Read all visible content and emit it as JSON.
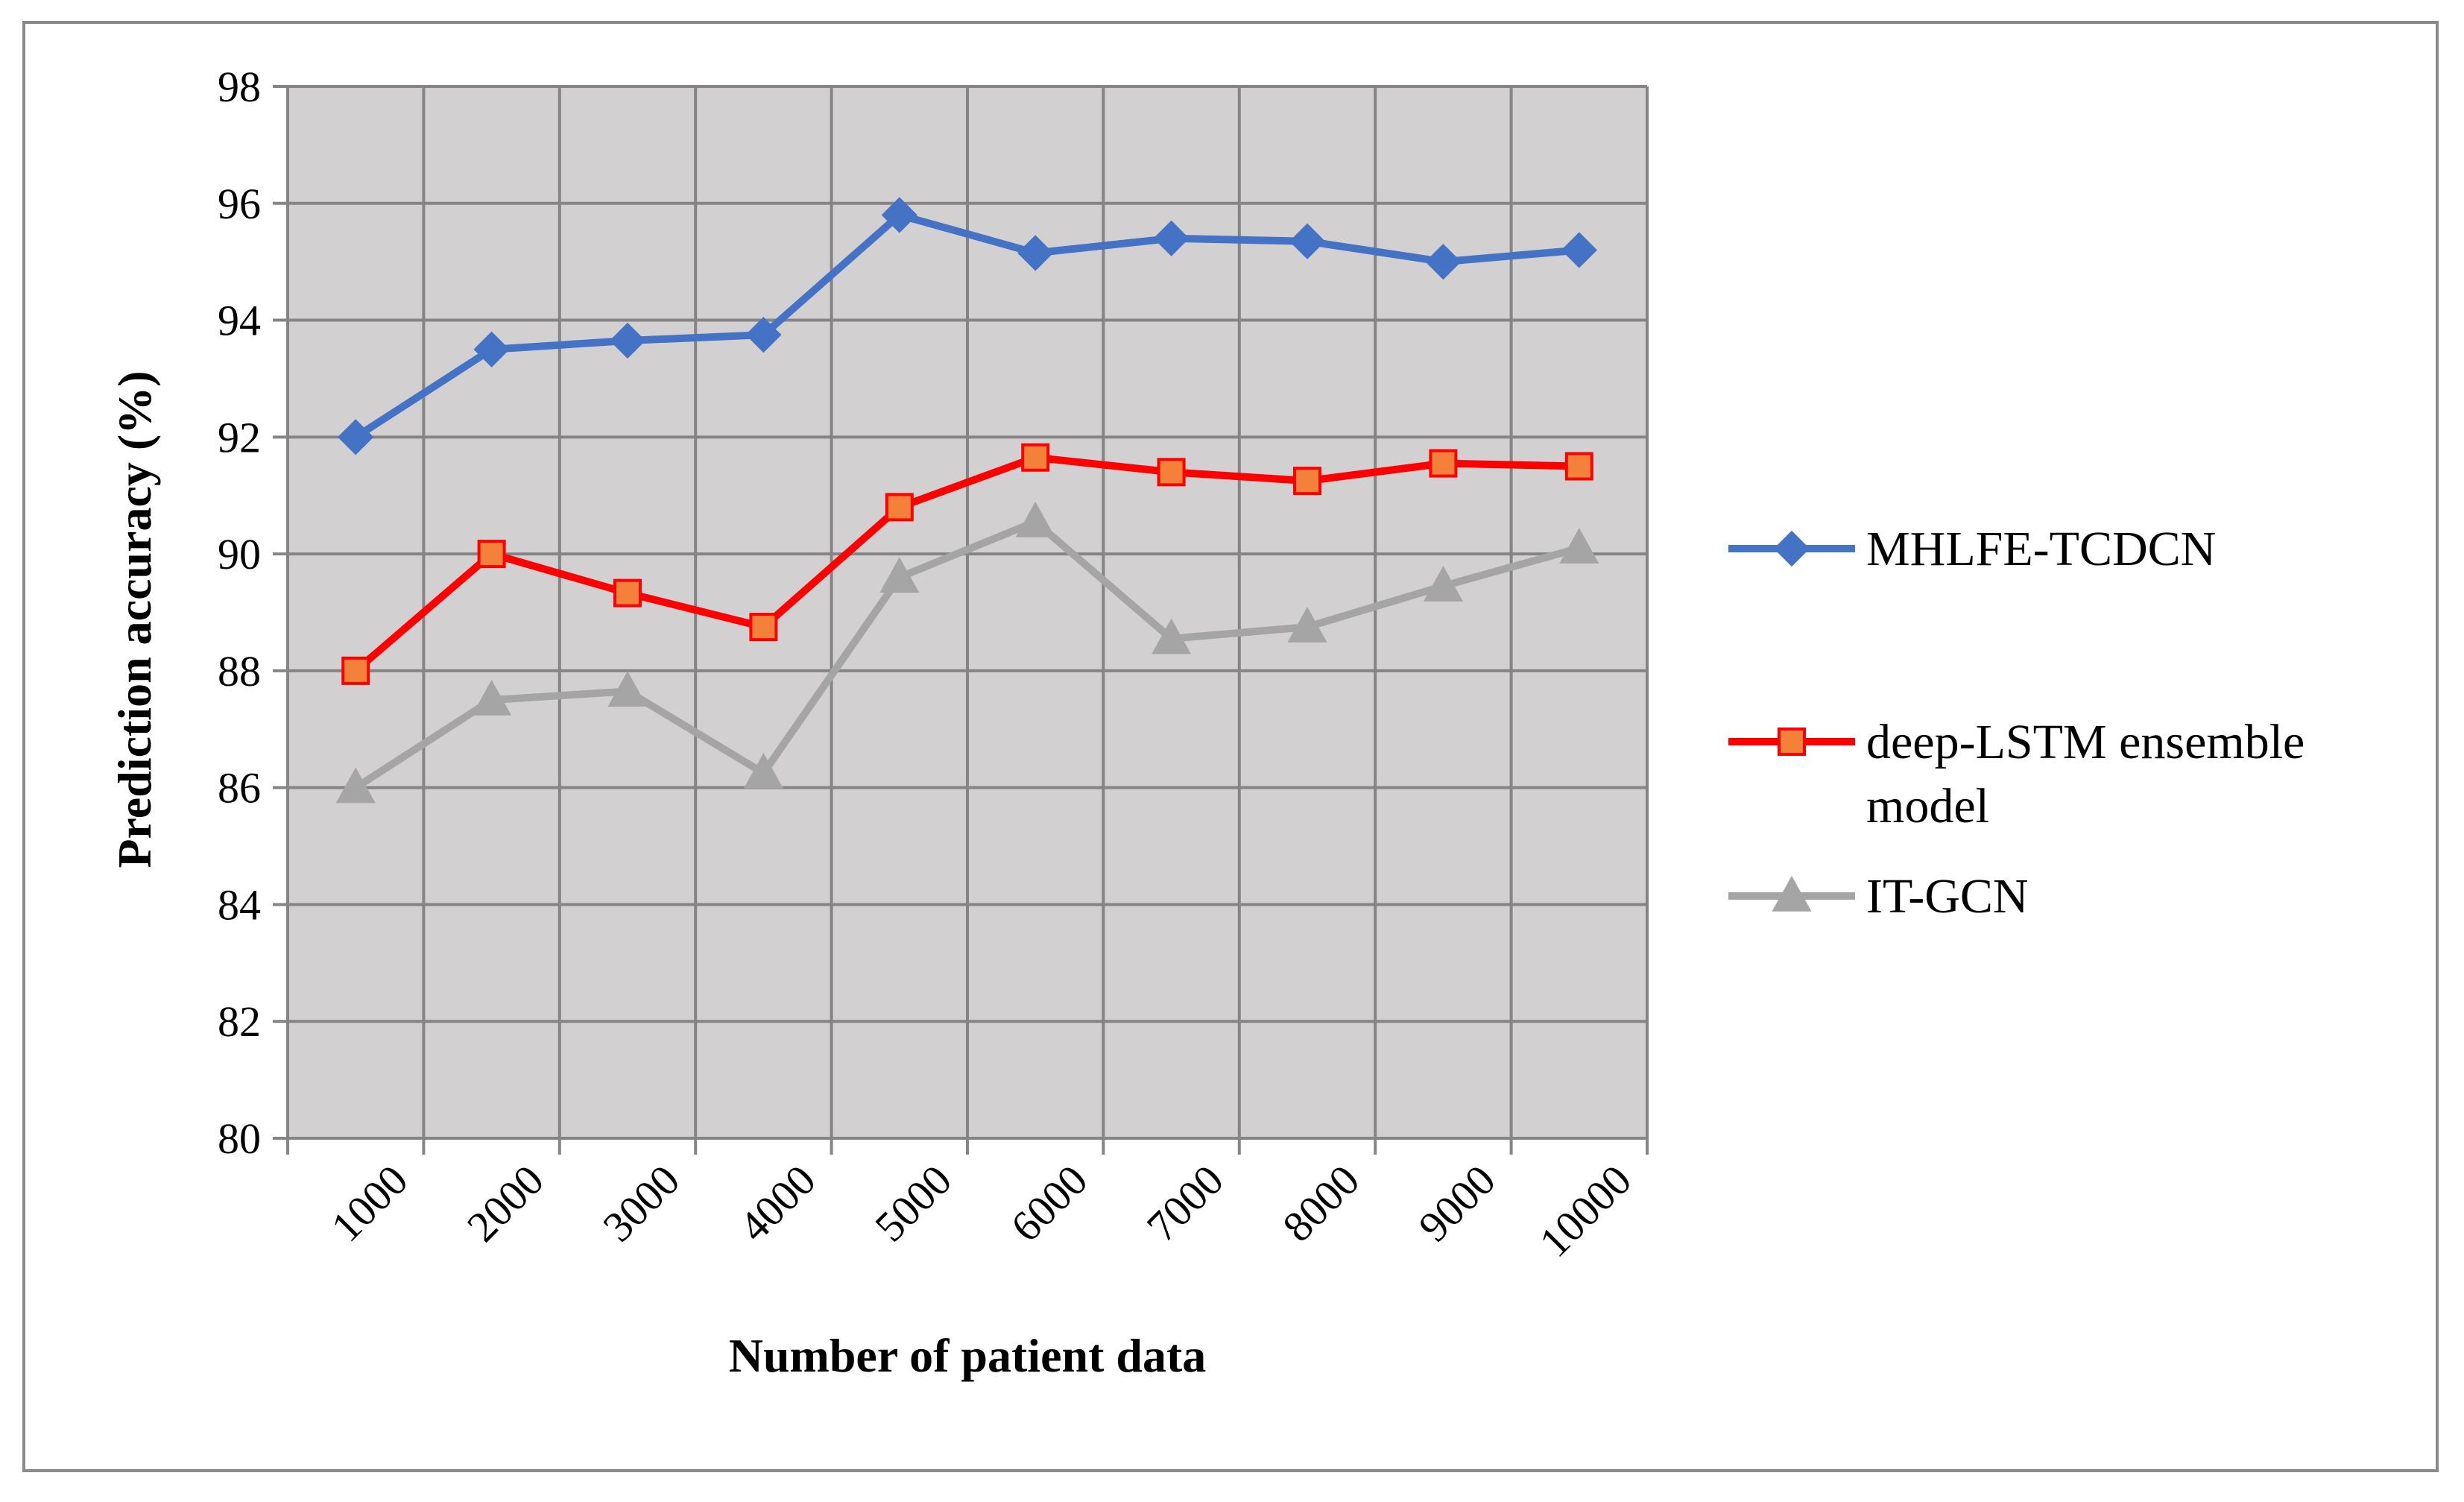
{
  "chart_data": {
    "type": "line",
    "title": "",
    "xlabel": "Number of patient data",
    "ylabel": "Prediction accuracy (%)",
    "categories": [
      "1000",
      "2000",
      "3000",
      "4000",
      "5000",
      "6000",
      "7000",
      "8000",
      "9000",
      "10000"
    ],
    "ylim": [
      80,
      98
    ],
    "yticks": [
      "80",
      "82",
      "84",
      "86",
      "88",
      "90",
      "92",
      "94",
      "96",
      "98"
    ],
    "grid": true,
    "legend_position": "right",
    "plot_background": "#d3d0d1",
    "series": [
      {
        "name": "MHLFE-TCDCN",
        "legend_lines": [
          "MHLFE-TCDCN"
        ],
        "color": "#4472c4",
        "marker": "diamond",
        "marker_fill": "#4472c4",
        "values": [
          92.0,
          93.5,
          93.65,
          93.75,
          95.8,
          95.15,
          95.4,
          95.35,
          95.0,
          95.2
        ]
      },
      {
        "name": "deep-LSTM ensemble model",
        "legend_lines": [
          "deep-LSTM ensemble",
          "model"
        ],
        "color": "#ff0000",
        "marker": "square",
        "marker_fill": "#f4813a",
        "values": [
          88.0,
          90.0,
          89.33,
          88.75,
          90.8,
          91.65,
          91.4,
          91.25,
          91.55,
          91.5
        ]
      },
      {
        "name": "IT-GCN",
        "legend_lines": [
          "IT-GCN"
        ],
        "color": "#a5a5a5",
        "marker": "triangle",
        "marker_fill": "#a5a5a5",
        "values": [
          86.0,
          87.5,
          87.65,
          86.25,
          89.6,
          90.55,
          88.55,
          88.75,
          89.45,
          90.1
        ]
      }
    ]
  }
}
